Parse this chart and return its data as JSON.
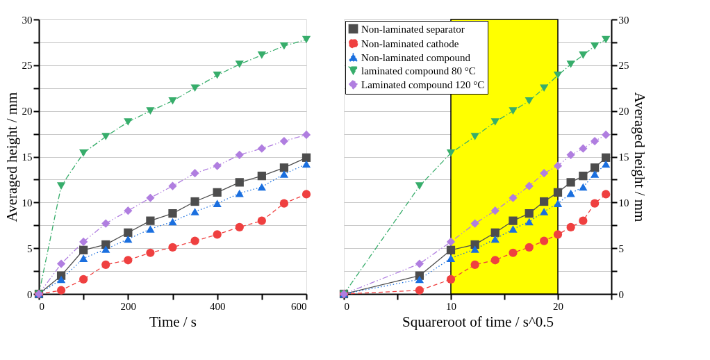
{
  "chart_data": [
    {
      "type": "line",
      "xlabel": "Time / s",
      "ylabel": "Averaged height / mm",
      "x": [
        0,
        50,
        100,
        150,
        200,
        250,
        300,
        350,
        400,
        450,
        500,
        550,
        600
      ],
      "xlim": [
        0,
        600
      ],
      "xticks": [
        0,
        {
          "value": 100,
          "label": null
        },
        200,
        {
          "value": 300,
          "label": null
        },
        400,
        {
          "value": 500,
          "label": null
        },
        600
      ],
      "ylim": [
        0,
        30
      ],
      "yticks": [
        0,
        {
          "value": 2.5,
          "label": null
        },
        5,
        {
          "value": 7.5,
          "label": null
        },
        10,
        {
          "value": 12.5,
          "label": null
        },
        15,
        {
          "value": 17.5,
          "label": null
        },
        20,
        {
          "value": 22.5,
          "label": null
        },
        25,
        {
          "value": 27.5,
          "label": null
        },
        30
      ],
      "grid": "y",
      "legend": false,
      "series": [
        {
          "color": "#4d4d4d",
          "marker": "square",
          "line_style": "solid",
          "values": [
            0,
            2.0,
            4.8,
            5.4,
            6.7,
            8.0,
            8.8,
            10.1,
            11.1,
            12.2,
            12.9,
            13.8,
            14.9
          ]
        },
        {
          "color": "#ef4040",
          "marker": "circle",
          "line_style": "dashed",
          "values": [
            0,
            0.4,
            1.6,
            3.2,
            3.7,
            4.5,
            5.1,
            5.8,
            6.5,
            7.3,
            8.0,
            9.9,
            10.9
          ]
        },
        {
          "color": "#1a6fdf",
          "marker": "triangle",
          "line_style": "dotted",
          "values": [
            0,
            1.6,
            3.9,
            4.9,
            6.0,
            7.1,
            7.9,
            9.0,
            9.9,
            11.0,
            11.7,
            13.1,
            14.2
          ]
        },
        {
          "color": "#37ad6b",
          "marker": "triangle-down",
          "line_style": "dashdot",
          "values": [
            0,
            11.8,
            15.4,
            17.2,
            18.8,
            20.0,
            21.1,
            22.5,
            23.9,
            25.1,
            26.1,
            27.1,
            27.8
          ]
        },
        {
          "color": "#b07ee0",
          "marker": "diamond",
          "line_style": "dashdotdot",
          "values": [
            0,
            3.3,
            5.7,
            7.7,
            9.1,
            10.5,
            11.8,
            13.2,
            14.0,
            15.2,
            15.9,
            16.7,
            17.4
          ]
        }
      ]
    },
    {
      "type": "line",
      "xlabel": "Squareroot of time / s^0.5",
      "y2label": "Averaged height / mm",
      "x": [
        0,
        7.07,
        10,
        12.25,
        14.14,
        15.81,
        17.32,
        18.71,
        20,
        21.21,
        22.36,
        23.45,
        24.49
      ],
      "xlim": [
        0,
        25
      ],
      "xticks": [
        0,
        {
          "value": 5,
          "label": null
        },
        10,
        {
          "value": 15,
          "label": null
        },
        20,
        {
          "value": 25,
          "label": null
        }
      ],
      "y2lim": [
        0,
        30
      ],
      "y2ticks": [
        0,
        {
          "value": 2.5,
          "label": null
        },
        5,
        {
          "value": 7.5,
          "label": null
        },
        10,
        {
          "value": 12.5,
          "label": null
        },
        15,
        {
          "value": 17.5,
          "label": null
        },
        20,
        {
          "value": 22.5,
          "label": null
        },
        25,
        {
          "value": 27.5,
          "label": null
        },
        30
      ],
      "grid": "y",
      "legend": "top left",
      "bands": [
        {
          "axis": "x",
          "from": 10,
          "to": 20,
          "color": "#ffff00"
        }
      ],
      "series": [
        {
          "name": "Non-laminated separator",
          "axis": "y2",
          "color": "#4d4d4d",
          "marker": "square",
          "line_style": "solid",
          "values": [
            0,
            2.0,
            4.8,
            5.4,
            6.7,
            8.0,
            8.8,
            10.1,
            11.1,
            12.2,
            12.9,
            13.8,
            14.9
          ]
        },
        {
          "name": "Non-laminated cathode",
          "axis": "y2",
          "color": "#ef4040",
          "marker": "circle",
          "line_style": "dashed",
          "values": [
            0,
            0.4,
            1.6,
            3.2,
            3.7,
            4.5,
            5.1,
            5.8,
            6.5,
            7.3,
            8.0,
            9.9,
            10.9
          ]
        },
        {
          "name": "Non-laminated compound",
          "axis": "y2",
          "color": "#1a6fdf",
          "marker": "triangle",
          "line_style": "dotted",
          "values": [
            0,
            1.6,
            3.9,
            4.9,
            6.0,
            7.1,
            7.9,
            9.0,
            9.9,
            11.0,
            11.7,
            13.1,
            14.2
          ]
        },
        {
          "name": "laminated compound 80 °C",
          "axis": "y2",
          "color": "#37ad6b",
          "marker": "triangle-down",
          "line_style": "dashdot",
          "values": [
            0,
            11.8,
            15.4,
            17.2,
            18.8,
            20.0,
            21.1,
            22.5,
            23.9,
            25.1,
            26.1,
            27.1,
            27.8
          ]
        },
        {
          "name": "Laminated compound 120 °C",
          "axis": "y2",
          "color": "#b07ee0",
          "marker": "diamond",
          "line_style": "dashdotdot",
          "values": [
            0,
            3.3,
            5.7,
            7.7,
            9.1,
            10.5,
            11.8,
            13.2,
            14.0,
            15.2,
            15.9,
            16.7,
            17.4
          ]
        }
      ]
    }
  ]
}
